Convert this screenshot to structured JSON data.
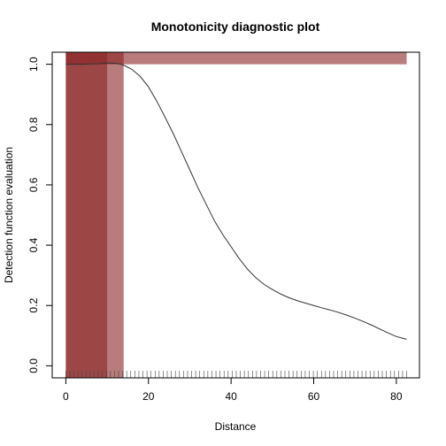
{
  "chart_data": {
    "type": "line",
    "title": "Monotonicity diagnostic plot",
    "xlabel": "Distance",
    "ylabel": "Detection function evaluation",
    "xlim": [
      -3.3,
      85.6
    ],
    "ylim": [
      -0.04,
      1.04
    ],
    "x_ticks": [
      0,
      20,
      40,
      60,
      80
    ],
    "y_ticks": [
      0.0,
      0.2,
      0.4,
      0.6,
      0.8,
      1.0
    ],
    "grid": false,
    "series": [
      {
        "x": [
          0,
          2,
          4,
          6,
          8,
          10,
          11,
          12,
          13,
          14,
          16,
          18,
          20,
          22,
          24,
          26,
          28,
          30,
          32,
          34,
          36,
          38,
          40,
          42,
          44,
          46,
          48,
          50,
          52,
          54,
          56,
          58,
          60,
          62,
          64,
          66,
          68,
          70,
          72,
          74,
          76,
          78,
          80,
          82.5
        ],
        "y": [
          1.0,
          1.0,
          1.0,
          1.001,
          1.002,
          1.004,
          1.004,
          1.003,
          1.001,
          0.997,
          0.983,
          0.96,
          0.925,
          0.878,
          0.825,
          0.77,
          0.71,
          0.65,
          0.59,
          0.535,
          0.48,
          0.435,
          0.395,
          0.355,
          0.32,
          0.292,
          0.27,
          0.253,
          0.238,
          0.226,
          0.216,
          0.208,
          0.2,
          0.192,
          0.185,
          0.177,
          0.168,
          0.158,
          0.147,
          0.135,
          0.122,
          0.109,
          0.097,
          0.088
        ],
        "color": "#333333"
      }
    ],
    "highlight_regions": [
      {
        "x0": 0,
        "x1": 10,
        "y0": -0.04,
        "y1": 1.04,
        "color": "#8b2323",
        "opacity": 0.6
      },
      {
        "x0": 0,
        "x1": 14,
        "y0": -0.04,
        "y1": 1.04,
        "color": "#8b2323",
        "opacity": 0.6
      },
      {
        "x0": 0,
        "x1": 82.5,
        "y0": 1.0,
        "y1": 1.04,
        "color": "#8b2323",
        "opacity": 0.6
      }
    ],
    "rug_x_range": [
      0,
      82.5
    ],
    "rug_count": 85,
    "rug_color": "#444444"
  }
}
